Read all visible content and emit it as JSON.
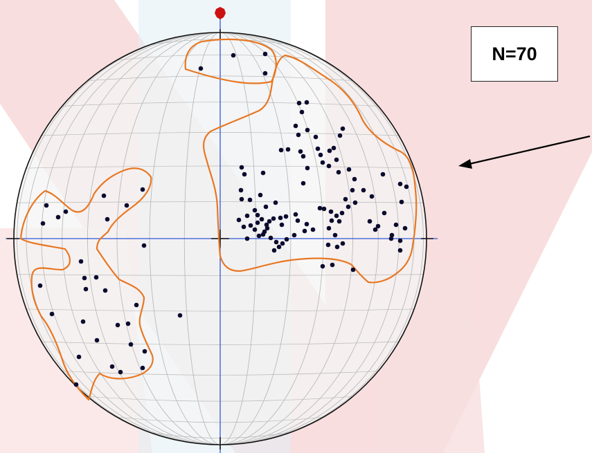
{
  "annotation": {
    "count_label": "N=70"
  },
  "colors": {
    "contour": "#e87722",
    "point": "#0b0b2e",
    "north_marker": "#cc1111",
    "axis": "#2f57d6",
    "net_grid": "#b8b8b8",
    "outline": "#111111",
    "pink_watermark": "#f6d5d5",
    "blue_watermark": "#d9e9f1"
  },
  "diagram": {
    "type": "stereonet-pole-plot",
    "projection": "equal-area",
    "pole_count": 70,
    "contour_count": 3,
    "north_marker": true,
    "pointer_arrow": true
  }
}
